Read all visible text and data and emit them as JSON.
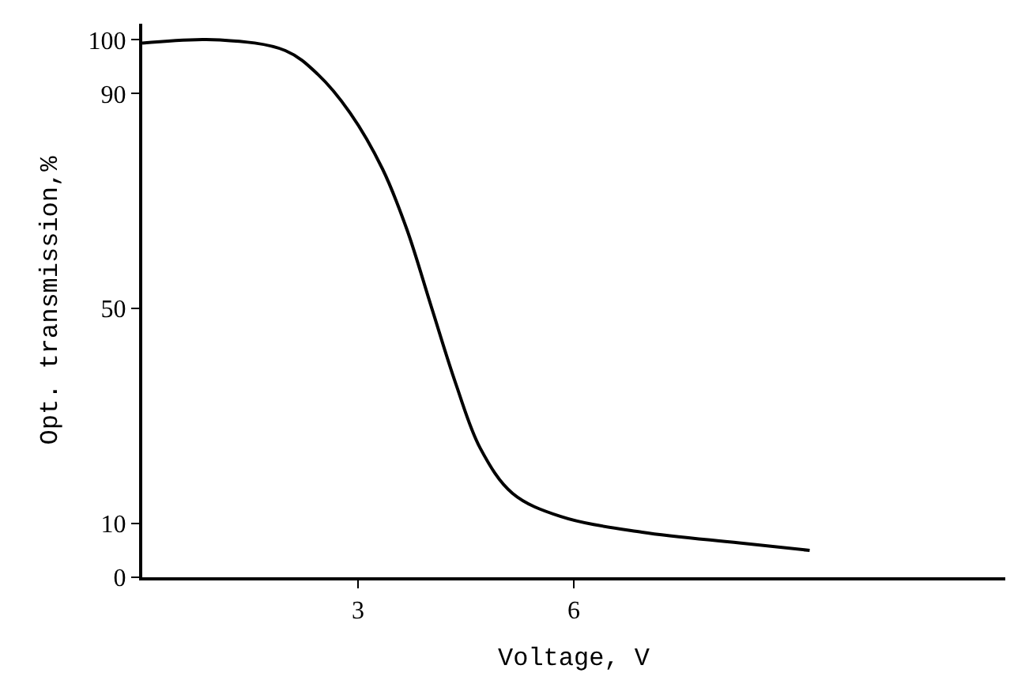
{
  "chart_data": {
    "type": "line",
    "xlabel": "Voltage, V",
    "ylabel": "Opt. transmission,%",
    "x": [
      0,
      1.08,
      1.99,
      2.44,
      2.89,
      3.34,
      3.68,
      4.02,
      4.36,
      4.7,
      5.15,
      5.82,
      6.95,
      8.3,
      9.28
    ],
    "series": [
      {
        "color": "#000000",
        "values": [
          99.4,
          100,
          98,
          93.6,
          86.4,
          76,
          64.7,
          50.3,
          36,
          24,
          15.6,
          11.3,
          8.4,
          6.4,
          5
        ]
      }
    ],
    "xlim": [
      0,
      12
    ],
    "ylim": [
      0,
      103
    ],
    "xticks": [
      3,
      6
    ],
    "yticks": [
      0,
      10,
      50,
      90,
      100
    ],
    "marker": "none",
    "line_style": "solid"
  }
}
